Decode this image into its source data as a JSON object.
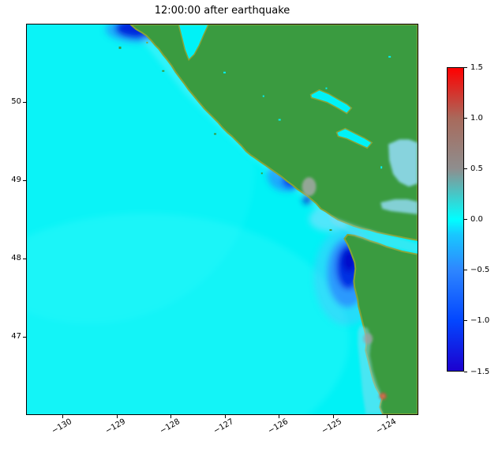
{
  "figure": {
    "title": "12:00:00 after earthquake",
    "background": "#ffffff"
  },
  "chart_data": {
    "type": "heatmap",
    "title": "12:00:00 after earthquake",
    "xlabel": "",
    "ylabel": "",
    "x_tick_values": [
      -130,
      -129,
      -128,
      -127,
      -126,
      -125,
      -124
    ],
    "x_tick_labels": [
      "−130",
      "−129",
      "−128",
      "−127",
      "−126",
      "−125",
      "−124"
    ],
    "y_tick_values": [
      50,
      49,
      48,
      47
    ],
    "y_tick_labels": [
      "50",
      "49",
      "48",
      "47"
    ],
    "xlim": [
      -130.68,
      -123.43
    ],
    "ylim": [
      46.0,
      51.0
    ],
    "grid": false,
    "legend_position": "right-colorbar",
    "colorbar": {
      "vmin": -1.5,
      "vmax": 1.5,
      "tick_values": [
        1.5,
        1.0,
        0.5,
        0.0,
        -0.5,
        -1.0,
        -1.5
      ],
      "tick_labels": [
        "1.5",
        "1.0",
        "0.5",
        "0.0",
        "−0.5",
        "−1.0",
        "−1.5"
      ],
      "gradient_stops": [
        {
          "value": -1.5,
          "color": "#1c00cf"
        },
        {
          "value": -1.0,
          "color": "#0347ff"
        },
        {
          "value": -0.5,
          "color": "#2e86ff"
        },
        {
          "value": -0.15,
          "color": "#18c8ff"
        },
        {
          "value": 0.0,
          "color": "#00ffff"
        },
        {
          "value": 0.5,
          "color": "#8e8e8e"
        },
        {
          "value": 1.0,
          "color": "#a86a5c"
        },
        {
          "value": 1.5,
          "color": "#ff0000"
        }
      ]
    },
    "colors": {
      "ocean": "#00f2f6",
      "land": "#3a9b40",
      "land_fringe": "#86a437",
      "shallow": "#8fd9ee"
    },
    "region": {
      "description": "Sea-surface elevation (m) off the Pacific Northwest coast (Vancouver Island, Strait of Juan de Fuca, Washington coast) 12:00:00 after a Cascadia earthquake. Cyan ocean ≈ 0, green = land, blue patches = negative elevation (drawdown) hugging the coast.",
      "notable_features": [
        {
          "name": "offshore-drawdown-washington-coast",
          "lon": -124.8,
          "lat": 47.75,
          "approx_value": -1.3
        },
        {
          "name": "coastal-drawdown-vancouver-island-bay",
          "lon": -125.9,
          "lat": 49.0,
          "approx_value": -0.8
        },
        {
          "name": "north-edge-drawdown-patch",
          "lon": -128.6,
          "lat": 50.95,
          "approx_value": -1.1
        },
        {
          "name": "gray-spot-alberni-inlet",
          "lon": -125.4,
          "lat": 48.95,
          "approx_value": 0.5
        },
        {
          "name": "red-spot-south-coast",
          "lon": -124.1,
          "lat": 46.25,
          "approx_value": 1.0
        },
        {
          "name": "open-ocean-background",
          "lon": -129.0,
          "lat": 48.0,
          "approx_value": 0.0
        }
      ]
    }
  }
}
